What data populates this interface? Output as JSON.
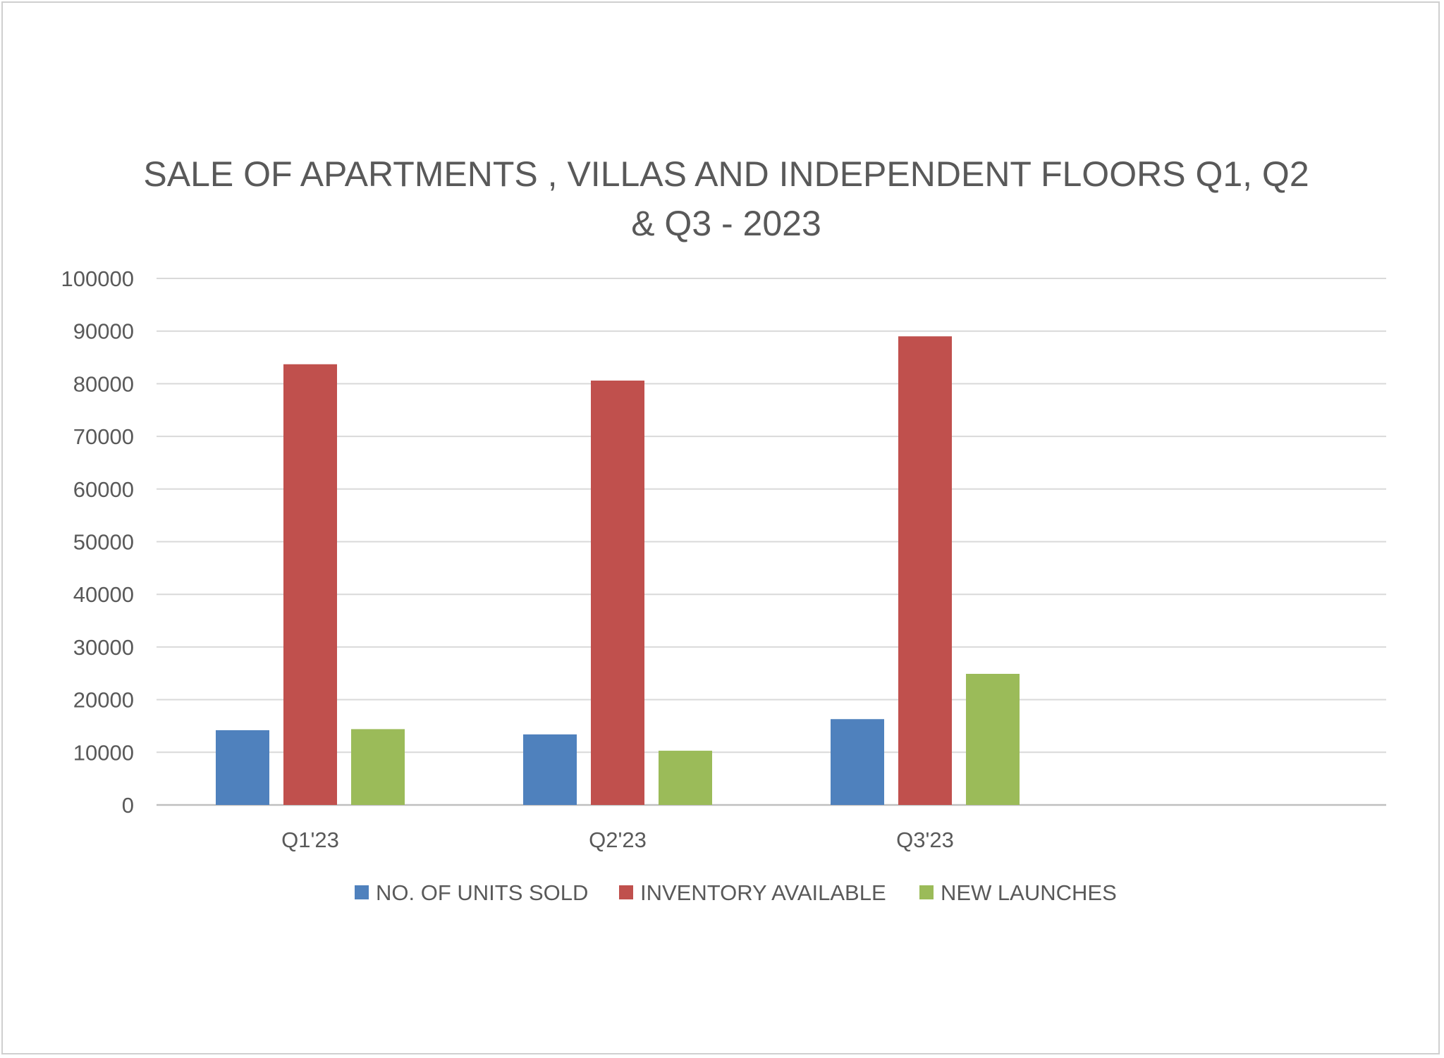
{
  "chart_data": {
    "type": "bar",
    "title_lines": [
      "SALE OF APARTMENTS , VILLAS AND INDEPENDENT FLOORS Q1, Q2",
      "& Q3 - 2023"
    ],
    "categories": [
      "Q1'23",
      "Q2'23",
      "Q3'23"
    ],
    "series": [
      {
        "name": "NO. OF UNITS SOLD",
        "color": "#4f81bd",
        "values": [
          14200,
          13400,
          16300
        ]
      },
      {
        "name": "INVENTORY AVAILABLE",
        "color": "#c0504d",
        "values": [
          83700,
          80600,
          89000
        ]
      },
      {
        "name": "NEW LAUNCHES",
        "color": "#9bbb59",
        "values": [
          14400,
          10300,
          24900
        ]
      }
    ],
    "ylim": [
      0,
      100000
    ],
    "yticks": [
      "0",
      "10000",
      "20000",
      "30000",
      "40000",
      "50000",
      "60000",
      "70000",
      "80000",
      "90000",
      "100000"
    ],
    "grid": true,
    "legend_position": "bottom"
  }
}
